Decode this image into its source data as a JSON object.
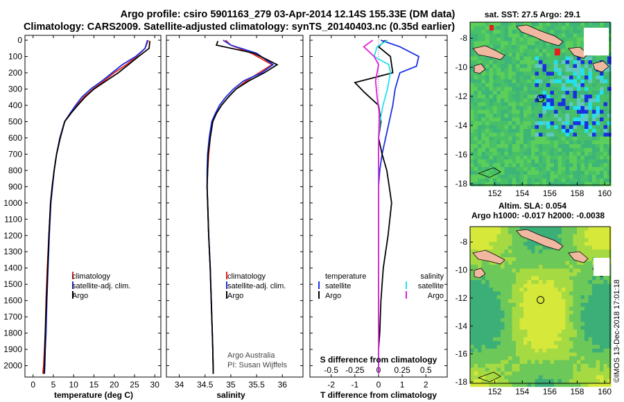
{
  "header": {
    "title_line1": "Argo profile: csiro 5901163_279 03-Apr-2014 12.14S 155.33E (DM data)",
    "title_line2": "Climatology: CARS2009. Satellite-adjusted climatology: synTS_20140403.nc (0.35d earlier)"
  },
  "colors": {
    "climatology": "#e8201c",
    "satellite": "#1a2fe0",
    "argo": "#000000",
    "sat_salinity": "#22e0ee",
    "argo_salinity": "#e020d8"
  },
  "depth_axis": {
    "ticks": [
      "0",
      "100",
      "200",
      "300",
      "400",
      "500",
      "600",
      "700",
      "800",
      "900",
      "1000",
      "1100",
      "1200",
      "1300",
      "1400",
      "1500",
      "1600",
      "1700",
      "1800",
      "1900",
      "2000"
    ],
    "values": [
      0,
      100,
      200,
      300,
      400,
      500,
      600,
      700,
      800,
      900,
      1000,
      1100,
      1200,
      1300,
      1400,
      1500,
      1600,
      1700,
      1800,
      1900,
      2000
    ],
    "range": [
      -30,
      2070
    ]
  },
  "chart_data": [
    {
      "type": "line",
      "xlabel": "temperature (deg C)",
      "xlim": [
        -2,
        31.5
      ],
      "xticks": [
        0,
        5,
        10,
        15,
        20,
        25,
        30
      ],
      "xtick_labels": [
        "0",
        "5",
        "10",
        "15",
        "20",
        "25",
        "30"
      ],
      "legend": [
        "climatology",
        "satellite-adj. clim.",
        "Argo"
      ],
      "series": [
        {
          "name": "climatology",
          "color": "#e8201c",
          "x": [
            28.4,
            27.6,
            25.5,
            23.0,
            20.0,
            17.5,
            14.8,
            12.5,
            10.8,
            9.3,
            7.8,
            6.7,
            5.8,
            5.2,
            4.7,
            4.3,
            3.9,
            3.5,
            3.2,
            3.0,
            2.8,
            2.6,
            2.4
          ],
          "y": [
            0,
            50,
            100,
            150,
            200,
            250,
            300,
            350,
            400,
            450,
            500,
            600,
            700,
            800,
            900,
            1000,
            1200,
            1400,
            1600,
            1800,
            1900,
            2000,
            2050
          ]
        },
        {
          "name": "satellite-adj. clim.",
          "color": "#1a2fe0",
          "x": [
            28.2,
            27.6,
            25.3,
            22.0,
            19.5,
            17.0,
            14.2,
            12.0,
            10.5,
            9.1,
            7.8,
            6.6,
            5.8,
            5.2,
            4.8,
            4.4,
            4.0,
            3.7,
            3.4,
            3.2,
            3.0,
            2.9,
            2.8
          ],
          "y": [
            0,
            50,
            100,
            150,
            200,
            250,
            300,
            350,
            400,
            450,
            500,
            600,
            700,
            800,
            900,
            1000,
            1200,
            1400,
            1600,
            1800,
            1900,
            2000,
            2050
          ]
        },
        {
          "name": "Argo",
          "color": "#000000",
          "x": [
            28.8,
            28.6,
            26.0,
            23.5,
            21.0,
            18.0,
            15.0,
            12.8,
            11.0,
            9.3,
            7.8,
            6.7,
            5.8,
            5.2,
            4.7,
            4.3,
            3.9,
            3.6,
            3.3,
            3.0,
            2.9,
            2.8,
            2.7
          ],
          "y": [
            5,
            50,
            100,
            150,
            200,
            250,
            300,
            350,
            400,
            450,
            500,
            600,
            700,
            800,
            900,
            1000,
            1200,
            1400,
            1600,
            1800,
            1900,
            2000,
            2050
          ]
        }
      ]
    },
    {
      "type": "line",
      "xlabel": "salinity",
      "xlim": [
        33.75,
        36.4
      ],
      "xticks": [
        34,
        34.5,
        35,
        35.5,
        36
      ],
      "xtick_labels": [
        "34",
        "34.5",
        "35",
        "35.5",
        "36"
      ],
      "legend": [
        "climatology",
        "satellite-adj. clim.",
        "Argo"
      ],
      "annotation": [
        "Argo Australia",
        "PI: Susan Wijffels"
      ],
      "series": [
        {
          "name": "climatology",
          "color": "#e8201c",
          "x": [
            34.9,
            35.0,
            35.4,
            35.8,
            35.55,
            35.3,
            35.1,
            34.95,
            34.82,
            34.72,
            34.65,
            34.6,
            34.57,
            34.55,
            34.54,
            34.55,
            34.57,
            34.6,
            34.62,
            34.64,
            34.65,
            34.66
          ],
          "y": [
            0,
            30,
            80,
            150,
            200,
            250,
            300,
            350,
            400,
            450,
            500,
            600,
            700,
            800,
            900,
            1000,
            1200,
            1400,
            1600,
            1800,
            1900,
            2050
          ]
        },
        {
          "name": "satellite-adj. clim.",
          "color": "#1a2fe0",
          "x": [
            34.85,
            35.0,
            35.5,
            35.82,
            35.6,
            35.25,
            35.05,
            34.9,
            34.78,
            34.7,
            34.63,
            34.58,
            34.55,
            34.54,
            34.54,
            34.55,
            34.57,
            34.6,
            34.62,
            34.64,
            34.65,
            34.66
          ],
          "y": [
            0,
            30,
            80,
            150,
            200,
            250,
            300,
            350,
            400,
            450,
            500,
            600,
            700,
            800,
            900,
            1000,
            1200,
            1400,
            1600,
            1800,
            1900,
            2050
          ]
        },
        {
          "name": "Argo",
          "color": "#000000",
          "x": [
            34.75,
            34.72,
            35.45,
            35.9,
            35.65,
            35.35,
            35.1,
            34.95,
            34.82,
            34.72,
            34.65,
            34.6,
            34.56,
            34.55,
            34.54,
            34.55,
            34.57,
            34.6,
            34.62,
            34.64,
            34.65,
            34.66
          ],
          "y": [
            5,
            30,
            80,
            150,
            200,
            250,
            300,
            350,
            400,
            450,
            500,
            600,
            700,
            800,
            900,
            1000,
            1200,
            1400,
            1600,
            1800,
            1900,
            2050
          ]
        }
      ]
    },
    {
      "type": "line",
      "xlabel": "T difference from climatology",
      "xlabel_top": "S difference from climatology",
      "xlim": [
        -2.9,
        2.9
      ],
      "xticks": [
        -2,
        -1,
        0,
        1,
        2
      ],
      "xtick_labels": [
        "-2",
        "-1",
        "0",
        "1",
        "2"
      ],
      "top_ticks": [
        -0.5,
        -0.25,
        0,
        0.25,
        0.5
      ],
      "top_tick_labels": [
        "-0.5",
        "-0.25",
        "0",
        "0.25",
        "0.5"
      ],
      "legend_left_title": "temperature",
      "legend_right_title": "salinity",
      "legend_left": [
        "satellite",
        "Argo"
      ],
      "legend_right": [
        "satellite",
        "Argo"
      ],
      "series": [
        {
          "name": "satellite",
          "group": "temperature",
          "color": "#1a2fe0",
          "x": [
            0.1,
            0.9,
            1.7,
            1.6,
            0.9,
            0.7,
            0.6,
            0.45,
            0.3,
            0.15,
            0.05,
            0.0,
            0.0,
            0.0,
            0.0,
            0.0,
            0.0,
            0.0,
            0.0
          ],
          "y": [
            0,
            40,
            100,
            160,
            200,
            300,
            400,
            500,
            600,
            700,
            800,
            900,
            1000,
            1200,
            1400,
            1600,
            1800,
            1900,
            2050
          ]
        },
        {
          "name": "Argo",
          "group": "temperature",
          "color": "#000000",
          "x": [
            0.3,
            0.0,
            0.5,
            0.6,
            -1.0,
            -0.6,
            0.0,
            0.1,
            0.0,
            0.15,
            0.35,
            0.45,
            0.55,
            0.4,
            0.2,
            0.1,
            0.05,
            0.0,
            0.0
          ],
          "y": [
            0,
            40,
            100,
            200,
            260,
            320,
            400,
            500,
            600,
            700,
            800,
            900,
            1000,
            1200,
            1400,
            1600,
            1800,
            1900,
            2050
          ]
        },
        {
          "name": "satellite",
          "group": "salinity",
          "color": "#22e0ee",
          "x": [
            0.6,
            -0.1,
            -0.3,
            0.7,
            0.8,
            0.6,
            0.3,
            0.1,
            0.0,
            0.0,
            0.0,
            0.0,
            0.0,
            0.0,
            0.0,
            0.0,
            0.0,
            0.0,
            0.0
          ],
          "y": [
            0,
            40,
            100,
            150,
            200,
            300,
            400,
            500,
            600,
            700,
            800,
            900,
            1000,
            1200,
            1400,
            1600,
            1800,
            1900,
            2050
          ]
        },
        {
          "name": "Argo",
          "group": "salinity",
          "color": "#e020d8",
          "x": [
            -0.4,
            -1.0,
            -0.3,
            0.0,
            -0.2,
            -0.1,
            0.05,
            0.05,
            0.0,
            0.0,
            0.0,
            0.0,
            0.0,
            0.0
          ],
          "y": [
            0,
            40,
            100,
            150,
            250,
            350,
            450,
            500,
            600,
            800,
            1000,
            1400,
            1800,
            2050
          ]
        }
      ]
    },
    {
      "type": "heatmap",
      "title": "sat. SST: 27.5 Argo: 29.1",
      "x_ticks": [
        "152",
        "154",
        "156",
        "158",
        "160"
      ],
      "y_ticks": [
        "-8",
        "-10",
        "-12",
        "-14",
        "-16",
        "-18"
      ],
      "x_values": [
        152,
        154,
        156,
        158,
        160
      ],
      "y_values": [
        -8,
        -10,
        -12,
        -14,
        -16,
        -18
      ],
      "xlim": [
        150.2,
        160.4
      ],
      "ylim": [
        -18.1,
        -6.9
      ],
      "marker": {
        "lon": 155.33,
        "lat": -12.14
      }
    },
    {
      "type": "heatmap",
      "title_line1": "Altim. SLA: 0.054",
      "title_line2": "Argo h1000: -0.017 h2000: -0.0038",
      "x_ticks": [
        "152",
        "154",
        "156",
        "158",
        "160"
      ],
      "y_ticks": [
        "-8",
        "-10",
        "-12",
        "-14",
        "-16",
        "-18"
      ],
      "x_values": [
        152,
        154,
        156,
        158,
        160
      ],
      "y_values": [
        -8,
        -10,
        -12,
        -14,
        -16,
        -18
      ],
      "xlim": [
        150.2,
        160.4
      ],
      "ylim": [
        -18.1,
        -6.9
      ],
      "marker": {
        "lon": 155.33,
        "lat": -12.14
      }
    }
  ],
  "footer": {
    "credit": "©IMOS 13-Dec-2018 17:01:18"
  }
}
